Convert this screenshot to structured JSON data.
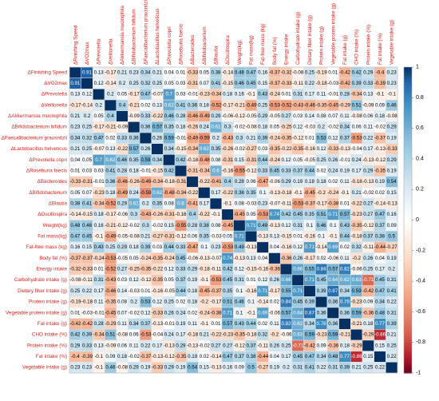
{
  "chart_data": {
    "type": "heatmap",
    "title": "",
    "variables": [
      "ΔFinishing Speed",
      "ΔVO2max",
      "ΔPrevotella",
      "ΔVeillonella",
      "ΔAkkermansia muciniphila",
      "ΔBifidobacterium bifidum",
      "ΔFaecalibacterium prausnitzii",
      "ΔLactobacillus helveticus",
      "ΔPrevotella copri",
      "ΔRoseburia faecis",
      "ΔBacteroides",
      "ΔBifidobacterium",
      "ΔBlautia",
      "ΔOscillospira",
      "Weight(kg)",
      "Fat mass(kg)",
      "Fat-free mass (kg)",
      "Body fat (%)",
      "Energy intake",
      "Carbohydrate intake (g)",
      "Dietary fiber intake (g)",
      "Protein intake (g)",
      "Vegetable protein intake (g)",
      "Fat intake (g)",
      "CHO intake (%)",
      "Protein intake (%)",
      "Fat intake (%)",
      "Vegetable intake (g)"
    ],
    "matrix": [
      [
        1,
        0.91,
        0.13,
        -0.17,
        0.21,
        0.23,
        0.34,
        0.21,
        0.04,
        0.01,
        -0.33,
        0.05,
        0.38,
        -0.14,
        0.48,
        0.47,
        0.16,
        -0.37,
        -0.32,
        -0.08,
        0.25,
        -0.19,
        0.01,
        -0.42,
        0.42,
        0.29,
        -0.4,
        0.23
      ],
      [
        0.91,
        1,
        0.12,
        -0.14,
        0.2,
        0.25,
        0.32,
        0.25,
        0.05,
        0.03,
        -0.31,
        0.07,
        0.41,
        -0.15,
        0.46,
        0.45,
        0.15,
        -0.37,
        -0.33,
        -0.11,
        0.22,
        -0.18,
        -0.03,
        -0.42,
        0.39,
        0.33,
        -0.39,
        0.23
      ],
      [
        0.13,
        0.12,
        1,
        0.2,
        0.05,
        -0.17,
        0.47,
        -0.07,
        0.7,
        0.03,
        -0.01,
        -0.23,
        -0.34,
        0.18,
        0.16,
        -0.1,
        0.43,
        -0.24,
        0.01,
        0.31,
        0.17,
        0.11,
        -0.01,
        0.28,
        -0.34,
        0.13,
        -0.1,
        -0.1
      ],
      [
        -0.17,
        -0.14,
        0.2,
        1,
        0.4,
        -0.21,
        0.02,
        0.13,
        0.62,
        0.41,
        0.36,
        0.18,
        -0.52,
        -0.17,
        -0.21,
        -0.49,
        0.25,
        -0.53,
        -0.52,
        -0.43,
        -0.46,
        -0.35,
        -0.45,
        -0.29,
        0.51,
        -0.09,
        0.09,
        0.46
      ],
      [
        0.21,
        0.2,
        0.05,
        0.4,
        1,
        -0.09,
        0.33,
        -0.22,
        0.46,
        0.28,
        -0.46,
        -0.49,
        0.29,
        -0.06,
        -0.12,
        -0.05,
        0.29,
        -0.05,
        0.27,
        0.03,
        0.14,
        0.08,
        0.07,
        0.11,
        -0.08,
        0.06,
        0.18,
        -0.08
      ],
      [
        0.23,
        0.25,
        -0.17,
        -0.21,
        -0.09,
        1,
        0.36,
        0.57,
        0.35,
        0.18,
        -0.26,
        0.24,
        0.61,
        0.3,
        -0.02,
        -0.08,
        0.18,
        0.05,
        -0.25,
        0.12,
        -0.03,
        0.2,
        -0.02,
        0.34,
        0.06,
        0.11,
        -0.02,
        0.29
      ],
      [
        0.34,
        0.32,
        0.47,
        0.02,
        0.33,
        0.36,
        1,
        0.26,
        0.59,
        -0.01,
        -0.49,
        -0.59,
        0.2,
        -0.43,
        0.3,
        0.21,
        0.39,
        -0.24,
        -0.35,
        -0.12,
        0.01,
        0.53,
        0.12,
        0.37,
        -0.53,
        0.22,
        -0.37,
        0.19
      ],
      [
        0.21,
        0.25,
        -0.07,
        0.13,
        -0.22,
        0.57,
        0.26,
        1,
        0.34,
        -0.15,
        -0.34,
        0.62,
        0.35,
        -0.26,
        -0.02,
        -0.27,
        0.03,
        -0.35,
        -0.22,
        -0.35,
        -0.16,
        0.12,
        -0.33,
        -0.13,
        -0.04,
        0.17,
        -0.13,
        -0.33
      ],
      [
        0.04,
        0.05,
        0.7,
        0.62,
        0.46,
        0.35,
        0.59,
        0.34,
        1,
        0.42,
        -0.18,
        -0.48,
        0.08,
        -0.31,
        0.15,
        -0.31,
        0.44,
        -0.24,
        0.12,
        0.05,
        -0.05,
        0.25,
        0.26,
        -0.01,
        0.24,
        -0.13,
        -0.12,
        0.29
      ],
      [
        0.01,
        0.03,
        0.03,
        0.41,
        0.28,
        0.18,
        -0.01,
        -0.15,
        0.42,
        1,
        -0.31,
        -0.34,
        0.6,
        -0.16,
        -0.55,
        -0.12,
        0.33,
        0.45,
        0.33,
        0.37,
        0.44,
        0.02,
        0.24,
        0.19,
        0.17,
        0.29,
        -0.35,
        0.19
      ],
      [
        -0.33,
        -0.31,
        -0.01,
        0.36,
        -0.46,
        -0.26,
        -0.49,
        -0.34,
        -0.18,
        -0.31,
        1,
        -0.22,
        -0.41,
        0.4,
        0.28,
        0.06,
        -0.47,
        -0.06,
        0.29,
        0.19,
        0.18,
        0.18,
        0.02,
        0.11,
        -0.18,
        -0.13,
        0.19,
        0.54
      ],
      [
        0.05,
        0.07,
        -0.23,
        0.18,
        -0.49,
        0.24,
        -0.59,
        0.62,
        -0.48,
        -0.34,
        -0.22,
        1,
        0.17,
        -0.22,
        0.38,
        0.35,
        0.1,
        -0.13,
        -0.18,
        -0.1,
        -0.45,
        -0.2,
        -0.24,
        -0.1,
        0.21,
        -0.02,
        0.02,
        0.15
      ],
      [
        0.38,
        0.41,
        -0.34,
        -0.52,
        0.29,
        0.61,
        0.2,
        0.35,
        0.08,
        0.6,
        -0.41,
        0.17,
        1,
        -0.1,
        0.08,
        -0.03,
        0.23,
        -0.07,
        -0.11,
        -0.53,
        -0.37,
        -0.17,
        -0.38,
        0.01,
        -0.22,
        0.27,
        -0.14,
        -0.13
      ],
      [
        -0.14,
        -0.15,
        0.18,
        -0.17,
        -0.06,
        0.3,
        -0.43,
        -0.26,
        -0.31,
        -0.16,
        0.4,
        -0.22,
        -0.1,
        1,
        -0.45,
        0.05,
        -0.53,
        0.74,
        0.42,
        0.45,
        0.35,
        0.51,
        0.71,
        0.57,
        -0.23,
        0.27,
        0.47,
        0.16
      ],
      [
        0.48,
        0.46,
        0.16,
        -0.21,
        -0.12,
        -0.02,
        0.3,
        -0.02,
        0.15,
        -0.55,
        0.28,
        0.38,
        0.08,
        -0.45,
        1,
        0.71,
        0.49,
        -0.13,
        0.12,
        0.31,
        0.1,
        0.46,
        0.1,
        0.43,
        -0.35,
        -0.12,
        0.37,
        0.09
      ],
      [
        0.47,
        0.45,
        -0.1,
        -0.49,
        -0.05,
        -0.08,
        0.21,
        -0.27,
        -0.31,
        -0.12,
        0.06,
        0.35,
        -0.03,
        0.05,
        0.71,
        1,
        -0.13,
        0.13,
        -0.15,
        0.01,
        -0.16,
        0.1,
        -0.1,
        0.44,
        -0.18,
        0.37,
        0.38,
        0.5
      ],
      [
        0.16,
        0.15,
        0.43,
        0.25,
        0.29,
        0.18,
        0.39,
        0.03,
        0.44,
        0.33,
        -0.47,
        0.1,
        0.23,
        -0.53,
        0.49,
        -0.13,
        1,
        0.04,
        -0.16,
        0.12,
        0.71,
        -0.14,
        0.69,
        0.02,
        0.32,
        -0.11,
        -0.44,
        -0.27
      ],
      [
        -0.37,
        -0.37,
        -0.24,
        -0.53,
        -0.05,
        0.05,
        -0.24,
        -0.35,
        -0.24,
        0.45,
        -0.06,
        -0.13,
        -0.07,
        0.74,
        -0.13,
        0.13,
        0.04,
        1,
        -0.36,
        0.26,
        -0.17,
        0.02,
        -0.06,
        0.11,
        -0.2,
        0.26,
        0.04,
        0.19
      ],
      [
        -0.32,
        -0.33,
        0.01,
        -0.52,
        0.27,
        -0.25,
        -0.35,
        -0.22,
        0.12,
        0.33,
        0.29,
        -0.18,
        -0.11,
        0.42,
        0.12,
        -0.15,
        -0.16,
        -0.36,
        1,
        0.66,
        0.55,
        0.84,
        0.57,
        0.82,
        -0.06,
        0.25,
        0.17,
        0.2
      ],
      [
        -0.08,
        -0.11,
        0.31,
        -0.43,
        0.03,
        0.12,
        -0.12,
        -0.35,
        0.05,
        0.37,
        0.19,
        -0.1,
        -0.53,
        0.45,
        0.31,
        0.01,
        0.12,
        0.26,
        0.66,
        1,
        0.71,
        0.45,
        0.64,
        0.62,
        0.63,
        -0.71,
        0.45,
        0.31
      ],
      [
        0.25,
        0.22,
        0.17,
        -0.46,
        0.14,
        -0.03,
        0.01,
        -0.16,
        -0.05,
        0.44,
        0.18,
        -0.45,
        -0.37,
        0.35,
        0.1,
        -0.16,
        0.71,
        -0.17,
        0.55,
        0.71,
        1,
        0.39,
        0.87,
        0.34,
        0.59,
        -0.42,
        0.47,
        0.41
      ],
      [
        -0.19,
        -0.18,
        0.11,
        -0.35,
        0.08,
        0.2,
        0.53,
        0.12,
        0.25,
        0.02,
        0.18,
        -0.2,
        -0.17,
        0.51,
        0.46,
        0.1,
        -0.14,
        0.02,
        0.84,
        0.45,
        0.39,
        1,
        0.36,
        0.78,
        -0.23,
        0.09,
        0.34,
        0.22
      ],
      [
        0.01,
        -0.03,
        -0.01,
        -0.45,
        0.07,
        -0.02,
        0.12,
        -0.33,
        0.26,
        0.24,
        0.02,
        -0.24,
        -0.38,
        0.71,
        0.1,
        -0.1,
        0.69,
        -0.06,
        0.57,
        0.64,
        0.87,
        0.36,
        1,
        0.36,
        0.59,
        -0.36,
        0.48,
        0.31
      ],
      [
        -0.42,
        -0.42,
        0.28,
        -0.29,
        0.11,
        0.34,
        0.37,
        -0.13,
        -0.01,
        0.19,
        0.11,
        -0.1,
        0.01,
        0.57,
        0.43,
        0.44,
        0.02,
        0.11,
        0.82,
        0.62,
        0.34,
        0.78,
        0.36,
        1,
        -0.21,
        0.18,
        0.77,
        0.39
      ],
      [
        0.42,
        0.39,
        -0.34,
        0.51,
        -0.08,
        0.06,
        -0.53,
        -0.04,
        0.24,
        0.17,
        -0.18,
        0.21,
        -0.22,
        -0.23,
        -0.35,
        -0.18,
        0.32,
        -0.2,
        -0.06,
        0.63,
        0.59,
        -0.23,
        0.59,
        -0.21,
        1,
        -0.29,
        -0.86,
        0.21
      ],
      [
        0.29,
        0.33,
        0.13,
        -0.09,
        0.06,
        0.11,
        0.22,
        0.17,
        -0.13,
        0.29,
        -0.13,
        -0.02,
        0.27,
        0.27,
        -0.12,
        0.37,
        -0.11,
        0.26,
        0.25,
        -0.71,
        -0.42,
        0.09,
        -0.36,
        0.18,
        -0.29,
        1,
        0.15,
        0.25
      ],
      [
        -0.4,
        -0.39,
        -0.1,
        0.09,
        0.18,
        -0.02,
        -0.37,
        -0.13,
        -0.12,
        -0.35,
        0.19,
        0.02,
        -0.14,
        0.47,
        0.37,
        0.38,
        -0.44,
        0.04,
        0.17,
        0.45,
        0.47,
        0.34,
        0.48,
        0.77,
        -0.86,
        0.15,
        1,
        0.22
      ],
      [
        0.23,
        0.23,
        -0.1,
        0.46,
        -0.08,
        0.29,
        0.19,
        -0.33,
        0.29,
        0.19,
        0.54,
        0.15,
        -0.13,
        0.16,
        0.09,
        0.5,
        -0.27,
        0.19,
        0.2,
        0.31,
        0.41,
        0.22,
        0.31,
        0.39,
        0.21,
        0.25,
        0.22,
        1
      ]
    ],
    "colorbar": {
      "range": [
        -1,
        1
      ],
      "ticks": [
        "1",
        "0.8",
        "0.6",
        "0.4",
        "0.2",
        "0",
        "-0.2",
        "-0.4",
        "-0.6",
        "-0.8",
        "-1"
      ],
      "colors": {
        "negative": "#67001f",
        "mid": "#ffffff",
        "positive": "#053061"
      }
    },
    "label_color": "#e0211d",
    "grid": true,
    "legend": "right"
  }
}
